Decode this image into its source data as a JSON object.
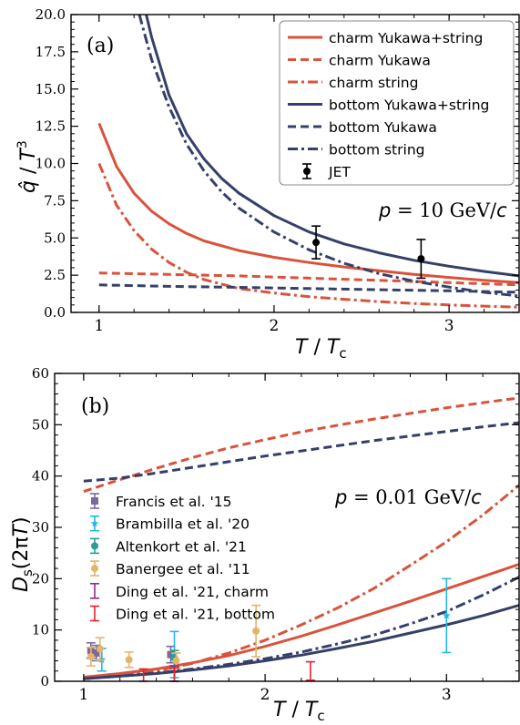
{
  "colors": {
    "charm": "#d9533c",
    "bottom": "#35406a",
    "jet": "#000000",
    "francis": "#7a6a9c",
    "brambilla": "#22b8e6",
    "altenkort": "#2a9d8f",
    "banerjee": "#e2b66a",
    "ding_charm": "#8e2c86",
    "ding_bottom": "#e8202a"
  },
  "chart_data": [
    {
      "type": "line",
      "panel_label": "(a)",
      "annotation": "p = 10 GeV/c",
      "xlabel": "T / T_c",
      "ylabel": "q̂ / T³",
      "xlim": [
        0.84,
        3.4
      ],
      "ylim": [
        0,
        20
      ],
      "xticks": [
        "1",
        "2",
        "3"
      ],
      "yticks": [
        "0.0",
        "2.5",
        "5.0",
        "7.5",
        "10.0",
        "12.5",
        "15.0",
        "17.5",
        "20.0"
      ],
      "legend_position": "top-right",
      "series": [
        {
          "name": "charm Yukawa+string",
          "color_key": "charm",
          "dash": "solid",
          "x": [
            1.0,
            1.1,
            1.2,
            1.3,
            1.4,
            1.5,
            1.6,
            1.8,
            2.0,
            2.2,
            2.4,
            2.6,
            2.8,
            3.0,
            3.2,
            3.4
          ],
          "y": [
            12.7,
            9.8,
            8.0,
            6.8,
            5.95,
            5.3,
            4.8,
            4.15,
            3.7,
            3.35,
            3.05,
            2.8,
            2.55,
            2.35,
            2.15,
            2.0
          ]
        },
        {
          "name": "charm Yukawa",
          "color_key": "charm",
          "dash": "dashed",
          "x": [
            1.0,
            1.4,
            1.8,
            2.2,
            2.6,
            3.0,
            3.4
          ],
          "y": [
            2.65,
            2.55,
            2.45,
            2.3,
            2.15,
            2.0,
            1.85
          ]
        },
        {
          "name": "charm string",
          "color_key": "charm",
          "dash": "dashdot",
          "x": [
            1.0,
            1.1,
            1.2,
            1.3,
            1.4,
            1.5,
            1.6,
            1.8,
            2.0,
            2.2,
            2.4,
            2.6,
            2.8,
            3.0,
            3.2,
            3.4
          ],
          "y": [
            10.0,
            7.2,
            5.5,
            4.25,
            3.35,
            2.7,
            2.2,
            1.6,
            1.3,
            1.05,
            0.88,
            0.72,
            0.6,
            0.5,
            0.42,
            0.35
          ]
        },
        {
          "name": "bottom Yukawa+string",
          "color_key": "bottom",
          "dash": "solid",
          "x": [
            1.27,
            1.3,
            1.4,
            1.5,
            1.6,
            1.7,
            1.8,
            2.0,
            2.2,
            2.4,
            2.6,
            2.8,
            3.0,
            3.2,
            3.4
          ],
          "y": [
            20.0,
            18.5,
            14.6,
            12.0,
            10.3,
            9.0,
            8.0,
            6.5,
            5.4,
            4.6,
            4.0,
            3.5,
            3.1,
            2.75,
            2.45
          ]
        },
        {
          "name": "bottom Yukawa",
          "color_key": "bottom",
          "dash": "dashed",
          "x": [
            1.0,
            1.4,
            1.8,
            2.2,
            2.6,
            3.0,
            3.4
          ],
          "y": [
            1.85,
            1.75,
            1.68,
            1.6,
            1.52,
            1.45,
            1.35
          ]
        },
        {
          "name": "bottom string",
          "color_key": "bottom",
          "dash": "dashdot",
          "x": [
            1.23,
            1.3,
            1.4,
            1.5,
            1.6,
            1.7,
            1.8,
            2.0,
            2.2,
            2.4,
            2.6,
            2.8,
            3.0,
            3.2,
            3.4
          ],
          "y": [
            20.0,
            17.0,
            13.8,
            11.3,
            9.5,
            8.1,
            7.0,
            5.4,
            4.2,
            3.3,
            2.6,
            2.1,
            1.7,
            1.35,
            1.1
          ]
        }
      ],
      "points": [
        {
          "name": "JET",
          "color_key": "jet",
          "marker": "circle",
          "x": [
            2.24,
            2.84
          ],
          "y": [
            4.7,
            3.6
          ],
          "err": [
            1.1,
            1.3
          ]
        }
      ]
    },
    {
      "type": "line",
      "panel_label": "(b)",
      "annotation": "p = 0.01 GeV/c",
      "xlabel": "T / T_c",
      "ylabel": "D_s (2πT)",
      "xlim": [
        0.84,
        3.4
      ],
      "ylim": [
        0,
        60
      ],
      "xticks": [
        "1",
        "2",
        "3"
      ],
      "yticks": [
        "0",
        "10",
        "20",
        "30",
        "40",
        "50",
        "60"
      ],
      "legend_position": "center-left",
      "series": [
        {
          "name": "charm Yukawa+string",
          "color_key": "charm",
          "dash": "solid",
          "x": [
            1.0,
            1.2,
            1.4,
            1.6,
            1.8,
            2.0,
            2.2,
            2.4,
            2.6,
            2.8,
            3.0,
            3.2,
            3.4
          ],
          "y": [
            0.8,
            1.5,
            2.4,
            3.6,
            5.0,
            6.8,
            8.8,
            11.0,
            13.3,
            15.6,
            18.0,
            20.4,
            22.8
          ]
        },
        {
          "name": "charm Yukawa",
          "color_key": "charm",
          "dash": "dashed",
          "x": [
            1.0,
            1.2,
            1.4,
            1.6,
            1.8,
            2.0,
            2.2,
            2.4,
            2.6,
            2.8,
            3.0,
            3.2,
            3.4
          ],
          "y": [
            37.0,
            39.3,
            41.5,
            43.6,
            45.5,
            47.1,
            48.6,
            49.9,
            51.1,
            52.2,
            53.3,
            54.3,
            55.2
          ]
        },
        {
          "name": "charm string",
          "color_key": "charm",
          "dash": "dashdot",
          "x": [
            1.0,
            1.2,
            1.4,
            1.6,
            1.8,
            2.0,
            2.2,
            2.4,
            2.6,
            2.8,
            3.0,
            3.2,
            3.4
          ],
          "y": [
            0.6,
            1.2,
            2.0,
            3.5,
            5.5,
            8.0,
            11.0,
            14.3,
            18.1,
            22.6,
            27.2,
            32.4,
            38.2
          ]
        },
        {
          "name": "bottom Yukawa+string",
          "color_key": "bottom",
          "dash": "solid",
          "x": [
            1.0,
            1.2,
            1.4,
            1.6,
            1.8,
            2.0,
            2.2,
            2.4,
            2.6,
            2.8,
            3.0,
            3.2,
            3.4
          ],
          "y": [
            0.5,
            1.0,
            1.5,
            2.2,
            3.0,
            4.0,
            5.1,
            6.4,
            7.8,
            9.4,
            11.0,
            12.8,
            14.8
          ]
        },
        {
          "name": "bottom Yukawa",
          "color_key": "bottom",
          "dash": "dashed",
          "x": [
            1.0,
            1.2,
            1.4,
            1.6,
            1.8,
            2.0,
            2.2,
            2.4,
            2.6,
            2.8,
            3.0,
            3.2,
            3.4
          ],
          "y": [
            39.0,
            39.6,
            40.6,
            41.7,
            42.8,
            43.9,
            44.9,
            45.9,
            46.9,
            47.8,
            48.7,
            49.6,
            50.4
          ]
        },
        {
          "name": "bottom string",
          "color_key": "bottom",
          "dash": "dashdot",
          "x": [
            1.0,
            1.2,
            1.4,
            1.6,
            1.8,
            2.0,
            2.2,
            2.4,
            2.6,
            2.8,
            3.0,
            3.2,
            3.4
          ],
          "y": [
            0.5,
            1.0,
            1.6,
            2.4,
            3.3,
            4.4,
            5.7,
            7.3,
            9.0,
            11.2,
            13.6,
            16.8,
            20.3
          ]
        }
      ],
      "points": [
        {
          "name": "Francis et al. '15",
          "color_key": "francis",
          "marker": "square",
          "x": [
            1.04,
            1.07,
            1.48
          ],
          "y": [
            6.0,
            5.5,
            5.2
          ],
          "err": [
            1.5,
            1.5,
            1.6
          ]
        },
        {
          "name": "Brambilla et al. '20",
          "color_key": "brambilla",
          "marker": "star",
          "x": [
            1.1,
            1.5,
            3.0
          ],
          "y": [
            4.2,
            5.2,
            12.8
          ],
          "err": [
            2.2,
            4.5,
            7.2
          ]
        },
        {
          "name": "Altenkort et al. '21",
          "color_key": "altenkort",
          "marker": "circle",
          "x": [
            1.5
          ],
          "y": [
            4.5
          ],
          "err": [
            1.5
          ]
        },
        {
          "name": "Banergee et al. '11",
          "color_key": "banerjee",
          "marker": "circle",
          "x": [
            1.04,
            1.09,
            1.25,
            1.51,
            1.95
          ],
          "y": [
            4.8,
            6.3,
            4.2,
            4.0,
            9.8
          ],
          "err": [
            1.8,
            2.2,
            1.5,
            1.5,
            5.0
          ]
        },
        {
          "name": "Ding et al. '21, charm",
          "color_key": "ding_charm",
          "marker": "bar",
          "x": [
            1.5
          ],
          "y": [
            1.5
          ],
          "err": [
            1.5
          ]
        },
        {
          "name": "Ding et al. '21, bottom",
          "color_key": "ding_bottom",
          "marker": "bar",
          "x": [
            1.33,
            1.5,
            2.25
          ],
          "y": [
            1.2,
            1.3,
            2.0
          ],
          "err": [
            1.2,
            1.3,
            1.8
          ]
        }
      ]
    }
  ],
  "legend_a": [
    {
      "label": "charm Yukawa+string",
      "color_key": "charm",
      "dash": "solid"
    },
    {
      "label": "charm Yukawa",
      "color_key": "charm",
      "dash": "dashed"
    },
    {
      "label": "charm string",
      "color_key": "charm",
      "dash": "dashdot"
    },
    {
      "label": "bottom Yukawa+string",
      "color_key": "bottom",
      "dash": "solid"
    },
    {
      "label": "bottom Yukawa",
      "color_key": "bottom",
      "dash": "dashed"
    },
    {
      "label": "bottom string",
      "color_key": "bottom",
      "dash": "dashdot"
    },
    {
      "label": "JET",
      "color_key": "jet",
      "dash": "marker"
    }
  ],
  "legend_b": [
    {
      "label": "Francis et al. '15",
      "color_key": "francis",
      "marker": "square"
    },
    {
      "label": "Brambilla et al. '20",
      "color_key": "brambilla",
      "marker": "star"
    },
    {
      "label": "Altenkort et al. '21",
      "color_key": "altenkort",
      "marker": "circle"
    },
    {
      "label": "Banergee et al. '11",
      "color_key": "banerjee",
      "marker": "circle"
    },
    {
      "label": "Ding et al. '21, charm",
      "color_key": "ding_charm",
      "marker": "bar"
    },
    {
      "label": "Ding et al. '21, bottom",
      "color_key": "ding_bottom",
      "marker": "bar"
    }
  ]
}
